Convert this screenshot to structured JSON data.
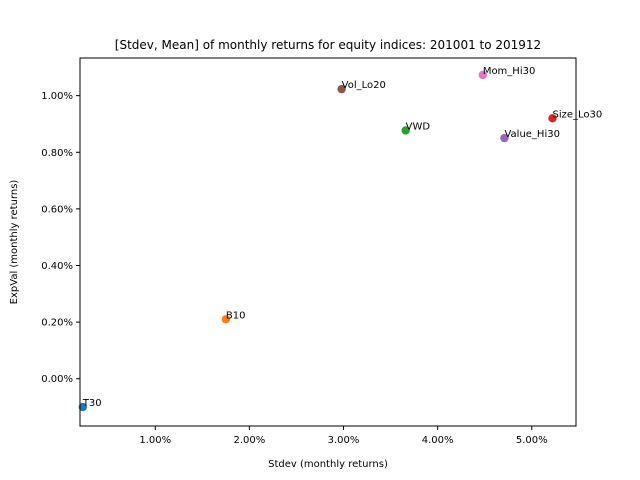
{
  "chart_data": {
    "type": "scatter",
    "title": "[Stdev, Mean] of monthly returns for equity indices: 201001 to 201912",
    "xlabel": "Stdev (monthly returns)",
    "ylabel": "ExpVal (monthly returns)",
    "xlim": [
      0.002,
      0.0547
    ],
    "ylim": [
      -0.00167,
      0.01133
    ],
    "x_ticks": [
      {
        "value": 0.01,
        "label": "1.00%"
      },
      {
        "value": 0.02,
        "label": "2.00%"
      },
      {
        "value": 0.03,
        "label": "3.00%"
      },
      {
        "value": 0.04,
        "label": "4.00%"
      },
      {
        "value": 0.05,
        "label": "5.00%"
      }
    ],
    "y_ticks": [
      {
        "value": 0.0,
        "label": "0.00%"
      },
      {
        "value": 0.002,
        "label": "0.20%"
      },
      {
        "value": 0.004,
        "label": "0.40%"
      },
      {
        "value": 0.006,
        "label": "0.60%"
      },
      {
        "value": 0.008,
        "label": "0.80%"
      },
      {
        "value": 0.01,
        "label": "1.00%"
      }
    ],
    "grid": false,
    "points": [
      {
        "label": "T30",
        "x": 0.0023,
        "y": -0.001,
        "color": "#1f77b4"
      },
      {
        "label": "B10",
        "x": 0.0175,
        "y": 0.0021,
        "color": "#ff7f0e"
      },
      {
        "label": "VWD",
        "x": 0.0366,
        "y": 0.00877,
        "color": "#2ca02c"
      },
      {
        "label": "Size_Lo30",
        "x": 0.0522,
        "y": 0.0092,
        "color": "#d62728"
      },
      {
        "label": "Value_Hi30",
        "x": 0.0471,
        "y": 0.0085,
        "color": "#9467bd"
      },
      {
        "label": "Vol_Lo20",
        "x": 0.0298,
        "y": 0.01023,
        "color": "#8c564b"
      },
      {
        "label": "Mom_Hi30",
        "x": 0.0448,
        "y": 0.01073,
        "color": "#e377c2"
      }
    ]
  }
}
